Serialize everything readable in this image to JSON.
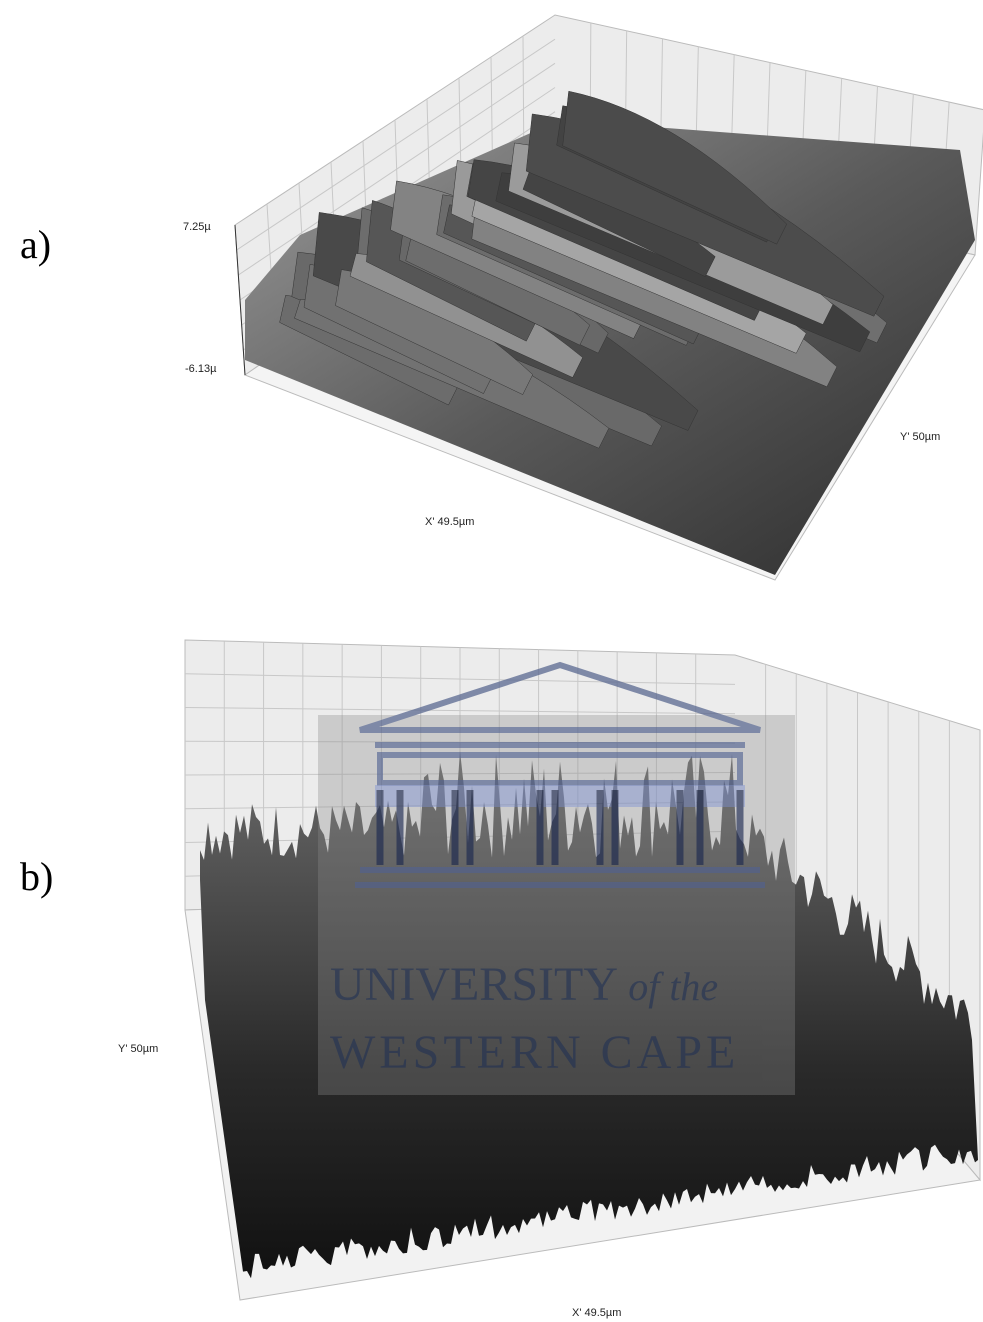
{
  "panels": [
    {
      "label": "a)",
      "z_max": "7.25µ",
      "z_min": "-6.13µ",
      "y_axis": "Y' 50µm",
      "x_axis": "X' 49.5µm"
    },
    {
      "label": "b)",
      "y_axis": "Y' 50µm",
      "x_axis": "X' 49.5µm"
    }
  ],
  "watermark": {
    "line1": "UNIVERSITY",
    "line1_suffix": "of the",
    "line2": "WESTERN CAPE"
  }
}
